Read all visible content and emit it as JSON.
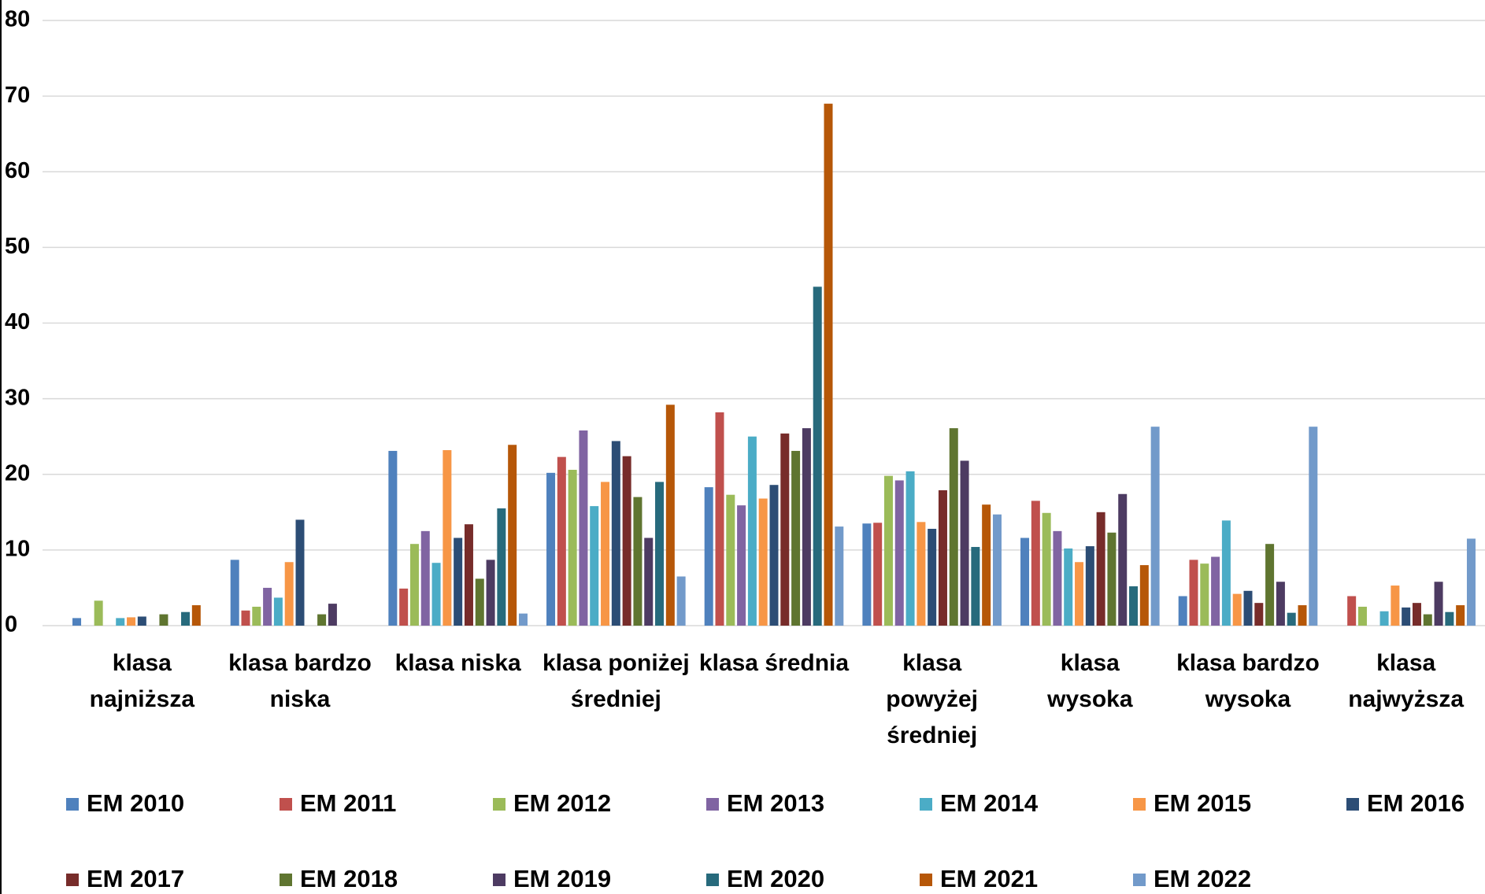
{
  "chart_data": {
    "type": "bar",
    "categories": [
      "klasa najniższa",
      "klasa bardzo niska",
      "klasa niska",
      "klasa poniżej średniej",
      "klasa średnia",
      "klasa powyżej średniej",
      "klasa wysoka",
      "klasa bardzo wysoka",
      "klasa najwyższa"
    ],
    "series": [
      {
        "name": "EM 2010",
        "color": "#4f81bd",
        "values": [
          1,
          8.7,
          23.1,
          20.2,
          18.3,
          13.5,
          11.6,
          3.9,
          0
        ]
      },
      {
        "name": "EM 2011",
        "color": "#c0504d",
        "values": [
          0,
          2,
          4.9,
          22.3,
          28.2,
          13.6,
          16.5,
          8.7,
          3.9
        ]
      },
      {
        "name": "EM 2012",
        "color": "#9bbb59",
        "values": [
          3.3,
          2.5,
          10.8,
          20.6,
          17.3,
          19.8,
          14.9,
          8.2,
          2.5
        ]
      },
      {
        "name": "EM 2013",
        "color": "#8064a2",
        "values": [
          0,
          5,
          12.5,
          25.8,
          15.9,
          19.2,
          12.5,
          9.1,
          0
        ]
      },
      {
        "name": "EM 2014",
        "color": "#4bacc6",
        "values": [
          1,
          3.7,
          8.3,
          15.8,
          25,
          20.4,
          10.2,
          13.9,
          1.9
        ]
      },
      {
        "name": "EM 2015",
        "color": "#f79646",
        "values": [
          1.1,
          8.4,
          23.2,
          19,
          16.8,
          13.7,
          8.4,
          4.2,
          5.3
        ]
      },
      {
        "name": "EM 2016",
        "color": "#2c4d75",
        "values": [
          1.2,
          14,
          11.6,
          24.4,
          18.6,
          12.8,
          10.5,
          4.6,
          2.4
        ]
      },
      {
        "name": "EM 2017",
        "color": "#772c2a",
        "values": [
          0,
          0,
          13.4,
          22.4,
          25.4,
          17.9,
          15,
          3,
          3
        ]
      },
      {
        "name": "EM 2018",
        "color": "#5f7530",
        "values": [
          1.5,
          1.5,
          6.2,
          17,
          23.1,
          26.1,
          12.3,
          10.8,
          1.5
        ]
      },
      {
        "name": "EM 2019",
        "color": "#4d3b62",
        "values": [
          0,
          2.9,
          8.7,
          11.6,
          26.1,
          21.8,
          17.4,
          5.8,
          5.8
        ]
      },
      {
        "name": "EM 2020",
        "color": "#276a7c",
        "values": [
          1.8,
          0,
          15.5,
          19,
          44.8,
          10.4,
          5.2,
          1.7,
          1.8
        ]
      },
      {
        "name": "EM 2021",
        "color": "#b65708",
        "values": [
          2.7,
          0,
          23.9,
          29.2,
          69,
          16,
          8,
          2.7,
          2.7
        ]
      },
      {
        "name": "EM 2022",
        "color": "#729aca",
        "values": [
          0,
          0,
          1.6,
          6.5,
          13.1,
          14.7,
          26.3,
          26.3,
          11.5
        ]
      }
    ],
    "ylim": [
      0,
      80
    ],
    "yticks": [
      0,
      10,
      20,
      30,
      40,
      50,
      60,
      70,
      80
    ],
    "grid": true
  }
}
